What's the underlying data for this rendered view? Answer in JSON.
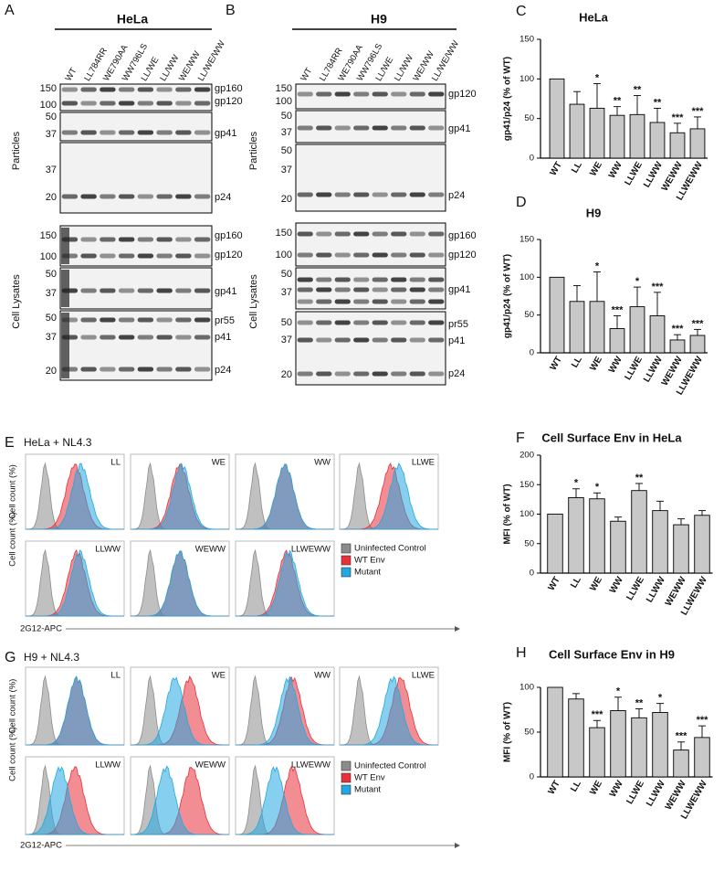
{
  "panels": {
    "A": {
      "letter": "A",
      "title": "HeLa",
      "lanes": [
        "WT",
        "LL784RR",
        "WE790AA",
        "WW796LS",
        "LL/WE",
        "LL/WW",
        "WE/WW",
        "LL/WE/WW"
      ],
      "sections": [
        "Particles",
        "Cell Lysates"
      ],
      "boxes": [
        {
          "markers": [
            150,
            100
          ],
          "bands": [
            "gp160",
            "gp120"
          ]
        },
        {
          "markers": [
            50,
            37
          ],
          "bands": [
            "gp41"
          ]
        },
        {
          "markers": [
            37,
            20
          ],
          "bands": [
            "p24"
          ]
        },
        {
          "markers": [
            150,
            100
          ],
          "bands": [
            "gp160",
            "gp120"
          ]
        },
        {
          "markers": [
            50,
            37
          ],
          "bands": [
            "gp41"
          ]
        },
        {
          "markers": [
            50,
            37,
            20
          ],
          "bands": [
            "pr55",
            "p41",
            "p24"
          ]
        }
      ]
    },
    "B": {
      "letter": "B",
      "title": "H9",
      "lanes": [
        "WT",
        "LL784RR",
        "WE790AA",
        "WW796LS",
        "LL/WE",
        "LL/WW",
        "WE/WW",
        "LL/WE/WW"
      ],
      "sections": [
        "Particles",
        "Cell Lysates"
      ],
      "boxes": [
        {
          "markers": [
            150,
            100
          ],
          "bands": [
            "gp120"
          ]
        },
        {
          "markers": [
            50,
            37
          ],
          "bands": [
            "gp41"
          ]
        },
        {
          "markers": [
            50,
            37,
            20
          ],
          "bands": [
            "p24"
          ]
        },
        {
          "markers": [
            150,
            100
          ],
          "bands": [
            "gp160",
            "gp120"
          ]
        },
        {
          "markers": [
            50,
            37
          ],
          "bands": [
            "gp41"
          ]
        },
        {
          "markers": [
            50,
            37,
            20
          ],
          "bands": [
            "pr55",
            "p41",
            "p24"
          ]
        }
      ]
    },
    "E": {
      "letter": "E",
      "title": "HeLa + NL4.3",
      "y_label": "Cell count (%)",
      "x_label": "2G12-APC",
      "subpanels": [
        "LL",
        "WE",
        "WW",
        "LLWE",
        "LLWW",
        "WEWW",
        "LLWEWW"
      ],
      "legend": [
        {
          "name": "Uninfected Control",
          "color": "#8c8c8c"
        },
        {
          "name": "WT Env",
          "color": "#e8303a"
        },
        {
          "name": "Mutant",
          "color": "#22a8e0"
        }
      ]
    },
    "G": {
      "letter": "G",
      "title": "H9 + NL4.3",
      "y_label": "Cell count (%)",
      "x_label": "2G12-APC",
      "subpanels": [
        "LL",
        "WE",
        "WW",
        "LLWE",
        "LLWW",
        "WEWW",
        "LLWEWW"
      ],
      "legend": [
        {
          "name": "Uninfected Control",
          "color": "#8c8c8c"
        },
        {
          "name": "WT Env",
          "color": "#e8303a"
        },
        {
          "name": "Mutant",
          "color": "#22a8e0"
        }
      ]
    }
  },
  "chart_data": [
    {
      "type": "bar",
      "letter": "C",
      "title": "HeLa",
      "y_label": "gp41/p24 (% of WT)",
      "categories": [
        "WT",
        "LL",
        "WE",
        "WW",
        "LLWE",
        "LLWW",
        "WEWW",
        "LLWEWW"
      ],
      "values": [
        100,
        68,
        63,
        54,
        55,
        45,
        32,
        37
      ],
      "errors": [
        0,
        16,
        31,
        11,
        24,
        18,
        12,
        15
      ],
      "significance": [
        null,
        null,
        "*",
        "**",
        "**",
        "**",
        "***",
        "***"
      ],
      "color": "#c8c8c8",
      "ylim": [
        0,
        150
      ],
      "yticks": [
        0,
        50,
        100,
        150
      ]
    },
    {
      "type": "bar",
      "letter": "D",
      "title": "H9",
      "y_label": "gp41/p24 (% of WT)",
      "categories": [
        "WT",
        "LL",
        "WE",
        "WW",
        "LLWE",
        "LLWW",
        "WEWW",
        "LLWEWW"
      ],
      "values": [
        100,
        68,
        68,
        32,
        61,
        49,
        17,
        23
      ],
      "errors": [
        0,
        21,
        39,
        17,
        26,
        31,
        7,
        8
      ],
      "significance": [
        null,
        null,
        "*",
        "***",
        "*",
        "***",
        "***",
        "***"
      ],
      "color": "#c8c8c8",
      "ylim": [
        0,
        150
      ],
      "yticks": [
        0,
        50,
        100,
        150
      ]
    },
    {
      "type": "bar",
      "letter": "F",
      "title": "Cell Surface Env in HeLa",
      "y_label": "MFI (% of WT)",
      "categories": [
        "WT",
        "LL",
        "WE",
        "WW",
        "LLWE",
        "LLWW",
        "WEWW",
        "LLWEWW"
      ],
      "values": [
        100,
        128,
        126,
        88,
        140,
        106,
        82,
        98
      ],
      "errors": [
        0,
        15,
        10,
        7,
        12,
        16,
        10,
        8
      ],
      "significance": [
        null,
        "*",
        "*",
        null,
        "**",
        null,
        null,
        null
      ],
      "color": "#c8c8c8",
      "ylim": [
        0,
        200
      ],
      "yticks": [
        0,
        50,
        100,
        150,
        200
      ]
    },
    {
      "type": "bar",
      "letter": "H",
      "title": "Cell Surface Env in H9",
      "y_label": "MFI (% of WT)",
      "categories": [
        "WT",
        "LL",
        "WE",
        "WW",
        "LLWE",
        "LLWW",
        "WEWW",
        "LLWEWW"
      ],
      "values": [
        100,
        87,
        55,
        74,
        66,
        72,
        30,
        44
      ],
      "errors": [
        0,
        6,
        8,
        15,
        10,
        10,
        9,
        13
      ],
      "significance": [
        null,
        null,
        "***",
        "*",
        "**",
        "*",
        "***",
        "***"
      ],
      "color": "#c8c8c8",
      "ylim": [
        0,
        100
      ],
      "yticks": [
        0,
        50,
        100
      ]
    }
  ]
}
